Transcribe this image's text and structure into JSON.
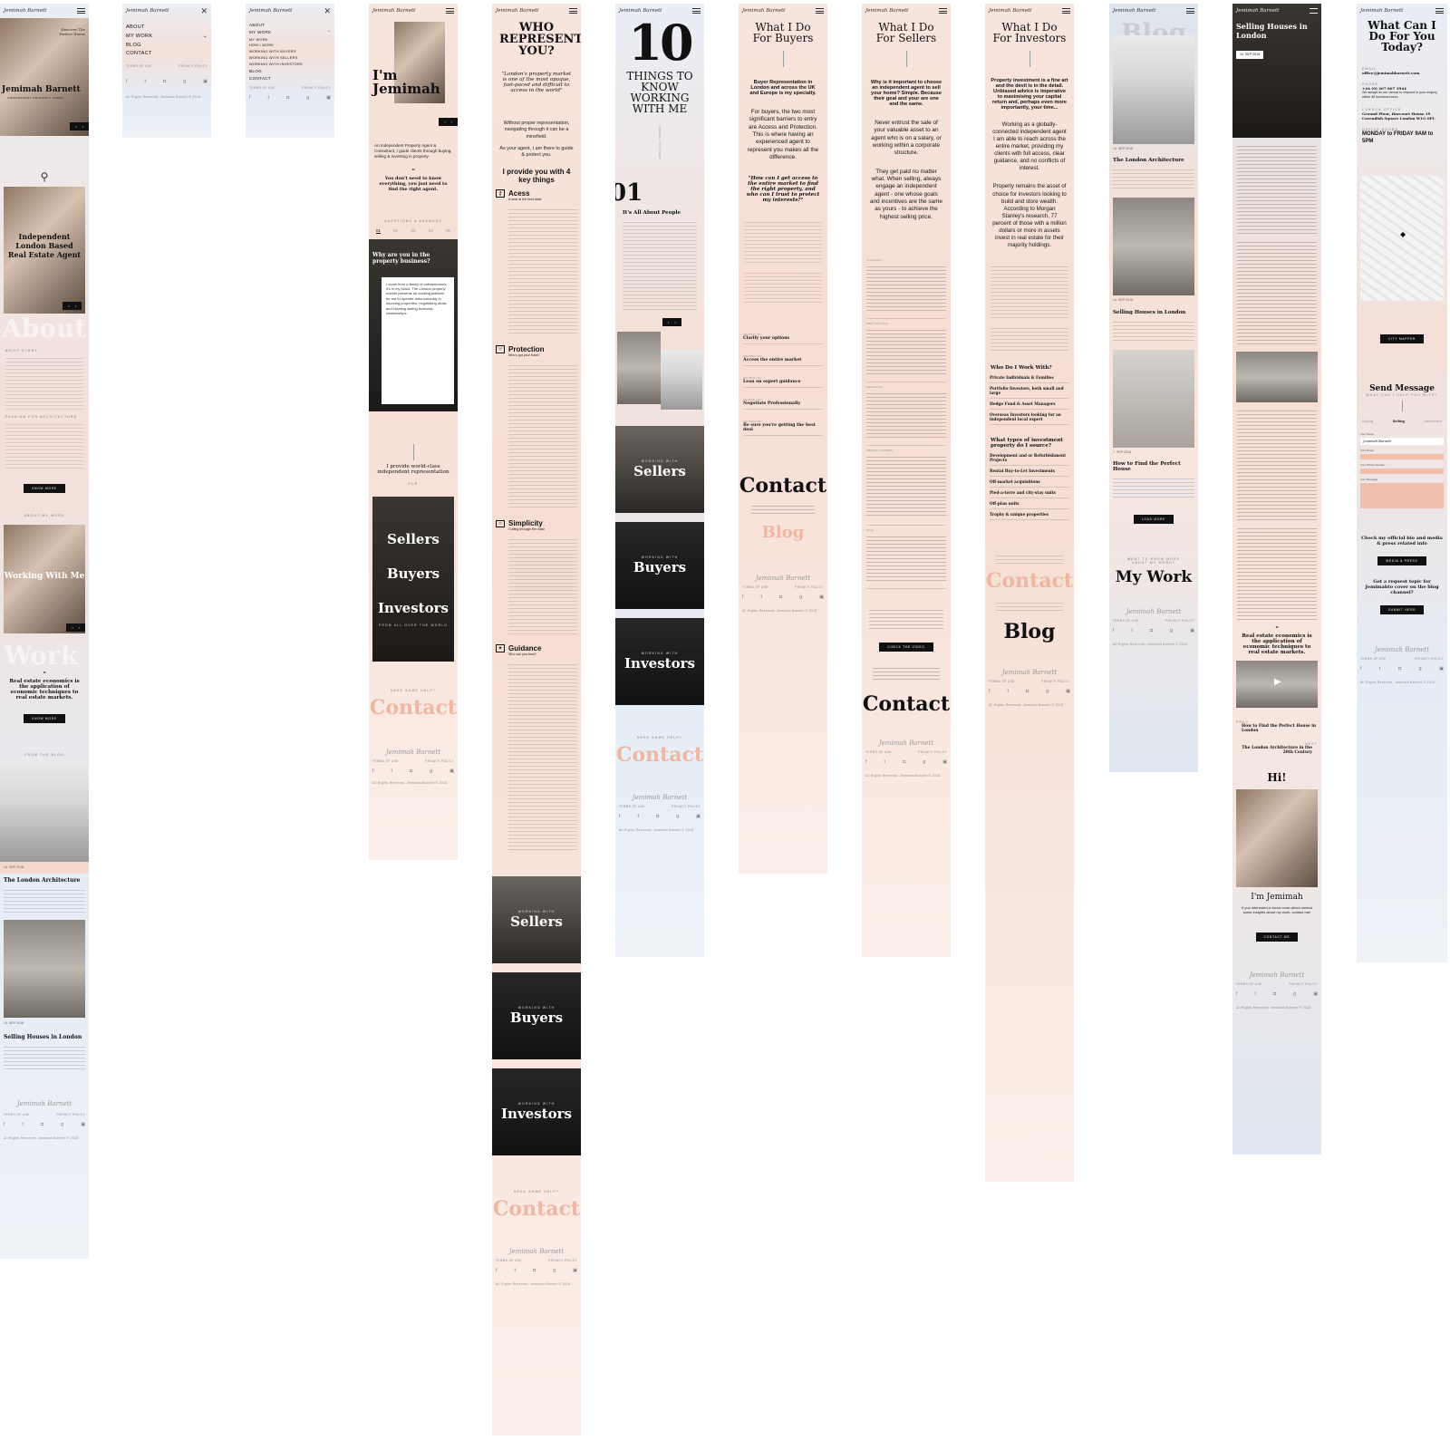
{
  "brand": {
    "signature": "Jemimah Barnett"
  },
  "footer": {
    "terms": "TERMS OF USE",
    "privacy": "PRIVACY POLICY",
    "rights": "All Rights Reserved. Jemimah Barnett © 2018"
  },
  "social_icons": [
    "facebook-icon",
    "twitter-icon",
    "instagram-icon",
    "google-plus-icon",
    "camera-icon"
  ],
  "colors": {
    "accent": "#e8a890",
    "dark": "#111111",
    "blush": "#f6ddd3",
    "sky": "#e4ecf5"
  },
  "home": {
    "hero_kicker": "Discover The Perfect House",
    "hero_name": "Jemimah Barnett",
    "hero_role": "INDEPENDENT PROPERTY AGENT",
    "headline": "Independent London Based Real Estate Agent",
    "about_watermark": "About",
    "brief_story": "BRIEF STORY",
    "passion": "PASSION FOR ARCHITECTURE",
    "know_more": "KNOW MORE",
    "about_my_work": "ABOUT MY WORK",
    "working_with_me": "Working With Me",
    "work_watermark": "Work",
    "quote": "Real estate economics is the application of economic techniques to real estate markets.",
    "from_blog": "FROM THE BLOG",
    "post1_date": "14. SEP 2018",
    "post1_title": "The London Architecture",
    "post2_date": "14. SEP 2018",
    "post2_title": "Selling Houses in London"
  },
  "menu": {
    "items": [
      "ABOUT",
      "MY WORK",
      "BLOG",
      "CONTACT"
    ],
    "expanded_items": [
      "ABOUT",
      "MY WORK",
      "MY WORK",
      "HOW I WORK",
      "WORKING WITH BUYERS",
      "WORKING WITH SELLERS",
      "WORKING WITH INVESTORS",
      "BLOG",
      "CONTACT"
    ]
  },
  "about": {
    "title": "I'm Jemimah",
    "intro": "An Independent Property Agent & Consultant, I guide clients through buying, selling & investing in property",
    "quote": "You don't need to know everything, you just need to find the right agent.",
    "qa_label": "QUESTIONS & ANSWERS",
    "qa_tabs": [
      "01",
      "02",
      "03",
      "04",
      "05"
    ],
    "q_title": "Why are you in the property business?",
    "answer": "I come from a family of entrepreneurs, it's in my blood. The London property market presents an exciting platform for me to operate autonomously in sourcing properties, negotiating deals and creating lasting business relationships.",
    "provide": "I provide world-class independent representation",
    "for": "FOR",
    "menu_tiles": [
      "Sellers",
      "Buyers",
      "Investors"
    ],
    "from_all_over": "FROM ALL OVER THE WORLD",
    "need_help": "NEED SOME HELP?",
    "contact": "Contact"
  },
  "who": {
    "title": "WHO REPRESENTS YOU?",
    "quote": "\"London's property market is one of the most opaque, fast-paced and difficult to access in the world\"",
    "p1": "Without proper representation, navigating through it can be a minefield.",
    "p2": "As your agent, I am there to guide & protect you.",
    "key_heading": "I provide you with 4 key things",
    "things": [
      {
        "title": "Acess",
        "sub": "A seat at the best table"
      },
      {
        "title": "Protection",
        "sub": "Who's got your back?"
      },
      {
        "title": "Simplicity",
        "sub": "Cutting through the noise"
      },
      {
        "title": "Guidance",
        "sub": "Who can you trust?"
      }
    ],
    "working_with": "WORKING WITH",
    "tiles": [
      "Sellers",
      "Buyers",
      "Investors"
    ],
    "need_help": "NEED SOME HELP?",
    "contact": "Contact"
  },
  "ten": {
    "number": "10",
    "title": "THINGS TO KNOW WORKING WITH ME",
    "scroll": "SCROLL TO START",
    "item_no": "01",
    "item_title": "It's All About People",
    "working_with": "WORKING WITH",
    "tiles": [
      "Sellers",
      "Buyers",
      "Investors"
    ],
    "need_help": "NEED SOME HELP?",
    "contact": "Contact"
  },
  "buyers": {
    "title": "What I Do For Buyers",
    "lead": "Buyer Representation in London and across the UK and Europe is my specialty.",
    "p1": "For buyers, the two most significant barriers to entry are Access and Protection. This is where having an experienced agent to represent you makes all the difference.",
    "quote": "\"How can I get access to the entire market to find the right property, and who can I trust to protect my interests?\"",
    "helping": "HELPING YOU",
    "steps": [
      "Clarify your options",
      "Access the entire market",
      "Lean on expert guidance",
      "Negotiate Professionally",
      "Be sure you're getting the best deal"
    ],
    "contact": "Contact",
    "blog": "Blog"
  },
  "sellers": {
    "title": "What I Do For Sellers",
    "lead": "Why is it important to choose an independent agent to sell your home? Simple. Because their goal and your are one and the same.",
    "p1": "Never entrust the sale of your valuable asset to an agent who is on a salary, or working within a corporate structure.",
    "p2": "They get paid no matter what. When selling, always engage an independent agent - one whose goals and incentives are the same as yours - to achieve the highest selling price.",
    "steps": [
      "VALUATION",
      "PREP FOR SALE",
      "MARKETING",
      "VIEWING & OFFERS",
      "SALE"
    ],
    "video_btn": "CHECK THE VIDEO",
    "contact": "Contact"
  },
  "investors": {
    "title": "What I Do For Investors",
    "lead": "Property investment is a fine art and the devil is in the detail. Unbiased advice is imperative to maximising your capital return and, perhaps even more importantly, your time...",
    "p1": "Working as a globally-connected independent agent I am able to reach across the entire market, providing my clients with full access, clear guidance, and no conflicts of interest.",
    "p2": "Property remains the asset of choice for investors looking to build and store wealth. According to Morgan Stanley's research, 77 percent of those with a million dollars or more in assets invest in real estate for their majority holdings.",
    "who_heading": "Who Do I Work With?",
    "who_items": [
      "Private Individuals & Families",
      "Portfolio Investors, both small and large",
      "Hedge Fund & Asset Managers",
      "Overseas Investors looking for an independent local expert"
    ],
    "types_heading": "What types of investment property do I source?",
    "types_items": [
      "Development and or Refurbishment Projects",
      "Rental Buy-to-Let Investments",
      "Off-market acquisitions",
      "Pied-a-terre and city-stay units",
      "Off-plan units",
      "Trophy & unique properties"
    ],
    "contact": "Contact",
    "blog": "Blog"
  },
  "blog": {
    "watermark": "Blog",
    "posts": [
      {
        "date": "14. SEP 2018",
        "title": "The London Architecture"
      },
      {
        "date": "14. SEP 2018",
        "title": "Selling Houses in London"
      },
      {
        "date": "7. SEP 2018",
        "title": "How to Find the Perfect House"
      }
    ],
    "load_more": "LOAD MORE",
    "want_to_know": "WANT TO KNOW MORE ABOUT MY WORK?",
    "my_work": "My Work"
  },
  "article": {
    "title": "Selling Houses in London",
    "date": "14. SEP 2018",
    "quote": "Real estate economics is the application of economic techniques to real estate markets.",
    "prev_label": "PREV",
    "prev_title": "How to Find the Perfect House in London",
    "next_label": "NEXT",
    "next_title": "The London Architecture in the 20th Century",
    "hi": "Hi!",
    "im": "I'm Jemimah",
    "about_text": "If you interested in know more about meand some insights about my work, contact me!",
    "contact_btn": "CONTACT ME"
  },
  "contact": {
    "title": "What Can I Do For You Today?",
    "email_label": "EMAIL",
    "email": "office@jemimahbarnett.com",
    "phone_label": "PHONE",
    "phone": "+44 (0) 207 867 3944",
    "phone_note": "We always do our utmost to respond to your enquiry within 48 business hours.",
    "office_label": "LONDON OFFICE",
    "office": "Ground Floor, Harcourt House 19 Cavendish Square London W1G 0PL",
    "hours_label": "OFFICE HOURS",
    "hours": "MONDAY to FRIDAY 9AM to 5PM",
    "map_btn": "CITY MAPPER",
    "send_title": "Send Message",
    "send_sub": "WHAT CAN I HELP YOU WITH?",
    "tabs": [
      "Buying",
      "Selling",
      "Investment"
    ],
    "fields": [
      "Your Name",
      "Your Email",
      "Your Phone Number",
      "Your Message"
    ],
    "name_value": "Jemimah Barnett",
    "media_q": "Check my official bio and media & press related info",
    "media_btn": "MEDIA & PRESS",
    "topic_q": "Got a request topic for Jemimahto cover on the blog channel?",
    "topic_btn": "SUBMIT HERE"
  }
}
